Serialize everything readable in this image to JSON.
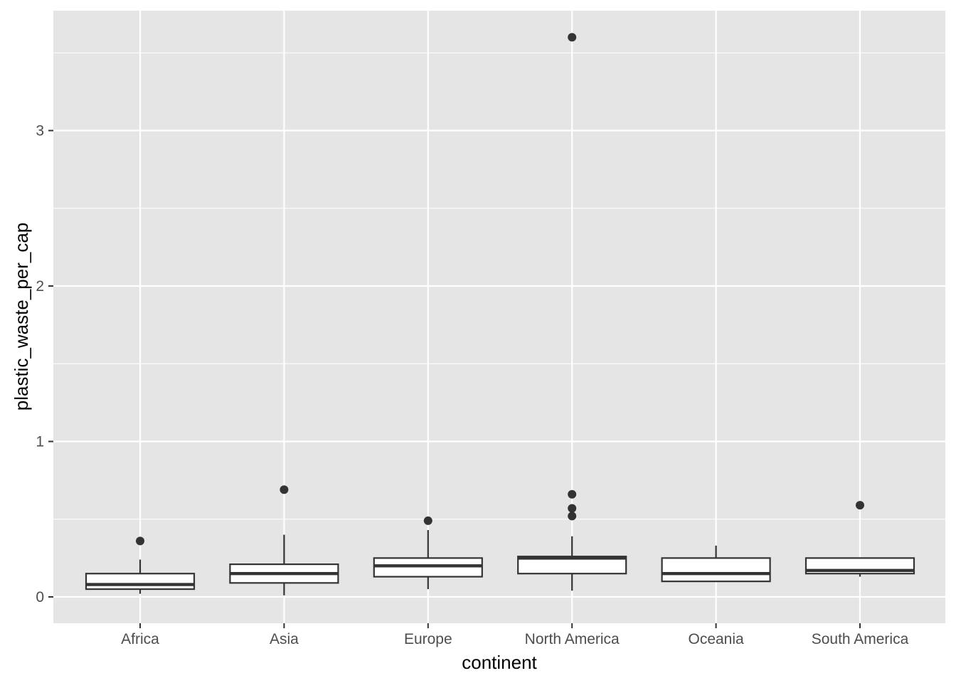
{
  "chart_data": {
    "type": "boxplot",
    "xlabel": "continent",
    "ylabel": "plastic_waste_per_cap",
    "ylim": [
      -0.17,
      3.78
    ],
    "y_ticks": [
      0,
      1,
      2,
      3
    ],
    "y_minor_ticks": [
      0.5,
      1.5,
      2.5,
      3.5
    ],
    "grid": true,
    "colors": {
      "panel_background": "#e5e5e5",
      "grid": "#ffffff",
      "box_fill": "#ffffff",
      "box_stroke": "#333333",
      "outlier": "#333333",
      "tick_text": "#4d4d4d",
      "title_text": "#000000"
    },
    "categories": [
      "Africa",
      "Asia",
      "Europe",
      "North America",
      "Oceania",
      "South America"
    ],
    "boxes": [
      {
        "category": "Africa",
        "whisker_low": 0.02,
        "q1": 0.05,
        "median": 0.08,
        "q3": 0.15,
        "whisker_high": 0.24,
        "outliers": [
          0.36
        ]
      },
      {
        "category": "Asia",
        "whisker_low": 0.01,
        "q1": 0.09,
        "median": 0.15,
        "q3": 0.21,
        "whisker_high": 0.4,
        "outliers": [
          0.69
        ]
      },
      {
        "category": "Europe",
        "whisker_low": 0.05,
        "q1": 0.13,
        "median": 0.2,
        "q3": 0.25,
        "whisker_high": 0.43,
        "outliers": [
          0.49
        ]
      },
      {
        "category": "North America",
        "whisker_low": 0.04,
        "q1": 0.15,
        "median": 0.25,
        "q3": 0.26,
        "whisker_high": 0.39,
        "outliers": [
          0.52,
          0.57,
          0.66,
          3.6
        ]
      },
      {
        "category": "Oceania",
        "whisker_low": 0.1,
        "q1": 0.1,
        "median": 0.15,
        "q3": 0.25,
        "whisker_high": 0.33,
        "outliers": []
      },
      {
        "category": "South America",
        "whisker_low": 0.13,
        "q1": 0.15,
        "median": 0.17,
        "q3": 0.25,
        "whisker_high": 0.25,
        "outliers": [
          0.59
        ]
      }
    ]
  }
}
